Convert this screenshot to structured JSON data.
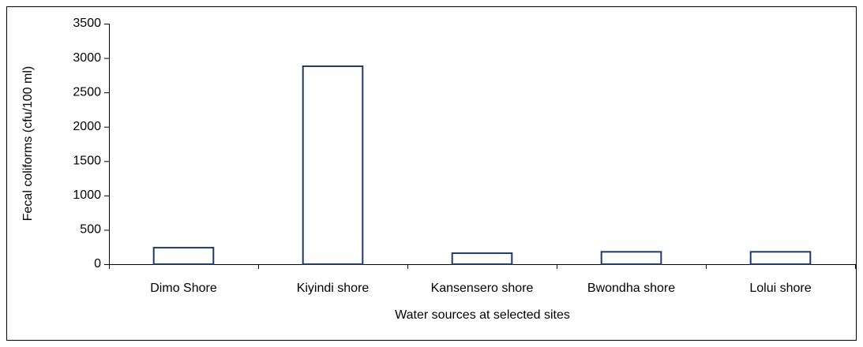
{
  "chart_data": {
    "type": "bar",
    "categories": [
      "Dimo Shore",
      "Kiyindi shore",
      "Kansensero shore",
      "Bwondha shore",
      "Lolui shore"
    ],
    "values": [
      240,
      2880,
      160,
      180,
      180
    ],
    "color": "#1f3a68",
    "x_label": "Water sources at selected sites",
    "y_label": "Fecal coliforms (cfu/100 ml)",
    "ylim": [
      0,
      3500
    ],
    "yticks": [
      0,
      500,
      1000,
      1500,
      2000,
      2500,
      3000,
      3500
    ],
    "grid": false
  }
}
